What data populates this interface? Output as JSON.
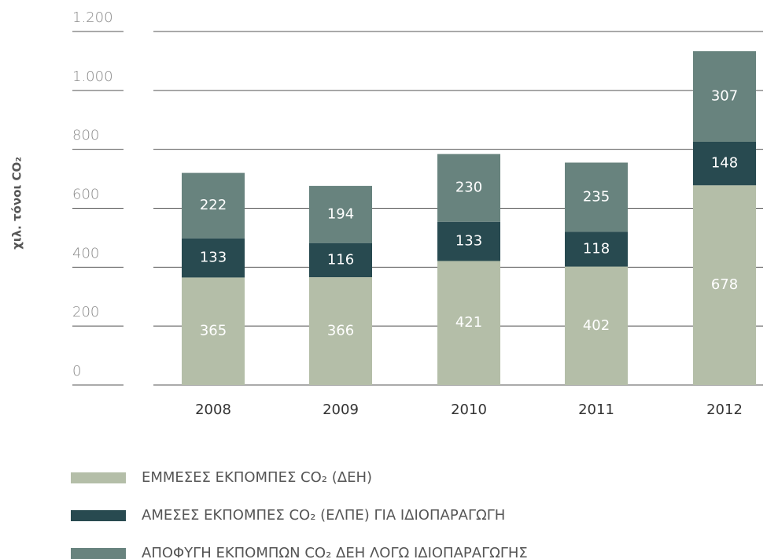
{
  "chart_data": {
    "type": "stacked_bar",
    "y_axis_label": "χιλ. τόνοι CO₂",
    "categories": [
      "2008",
      "2009",
      "2010",
      "2011",
      "2012"
    ],
    "series": [
      {
        "name": "ΕΜΜΕΣΕΣ ΕΚΠΟΜΠΕΣ CO₂ (ΔΕΗ)",
        "color": "#b4bea8",
        "values": [
          365,
          366,
          421,
          402,
          678
        ]
      },
      {
        "name": "ΑΜΕΣΕΣ ΕΚΠΟΜΠΕΣ CO₂ (ΕΛΠΕ) ΓΙΑ ΙΔΙΟΠΑΡΑΓΩΓΗ",
        "color": "#284a50",
        "values": [
          133,
          116,
          133,
          118,
          148
        ]
      },
      {
        "name": "ΑΠΟΦΥΓΗ ΕΚΠΟΜΠΩΝ CO₂ ΔΕΗ ΛΟΓΩ ΙΔΙΟΠΑΡΑΓΩΓΗΣ",
        "color": "#68837e",
        "values": [
          222,
          194,
          230,
          235,
          307
        ]
      }
    ],
    "ylim": [
      0,
      1200
    ],
    "yticks": [
      0,
      200,
      400,
      600,
      800,
      {
        "value": 1000,
        "label": "1.000"
      },
      {
        "value": 1200,
        "label": "1.200"
      }
    ],
    "grid": true,
    "legend": "bottom"
  }
}
